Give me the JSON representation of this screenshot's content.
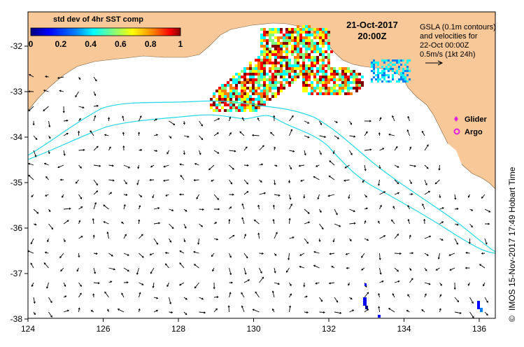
{
  "colorbar": {
    "title": "std dev of 4hr SST comp",
    "ticks": [
      "0",
      "0.2",
      "0.4",
      "0.6",
      "0.8",
      "1"
    ],
    "colors": [
      "#00007f",
      "#0000ff",
      "#007fff",
      "#00ffff",
      "#7fff7f",
      "#ffff00",
      "#ff7f00",
      "#ff0000",
      "#7f0000"
    ]
  },
  "datetime": {
    "date": "21-Oct-2017",
    "time": "20:00Z"
  },
  "legend_note": {
    "lines": [
      "GSLA (0.1m contours)",
      "and velocities for",
      "22-Oct 00:00Z",
      "0.5m/s (1kt 24h)"
    ]
  },
  "markers": {
    "glider": "Glider",
    "argo": "Argo"
  },
  "side_label": "IMOS 15-Nov-2017 17:49 Hobart Time",
  "axes": {
    "lon_ticks": [
      "124",
      "126",
      "128",
      "130",
      "132",
      "134",
      "136"
    ],
    "lat_ticks": [
      "-32",
      "-33",
      "-34",
      "-35",
      "-36",
      "-37",
      "-38"
    ]
  },
  "colors": {
    "land": "#f8c898",
    "contour": "#22d8e8",
    "arrow": "#000000",
    "glider": "#e020e0",
    "argo": "#e020e0"
  },
  "icons": {
    "copyright": "copyright-symbol",
    "velocity_arrow": "arrow-right-icon"
  }
}
